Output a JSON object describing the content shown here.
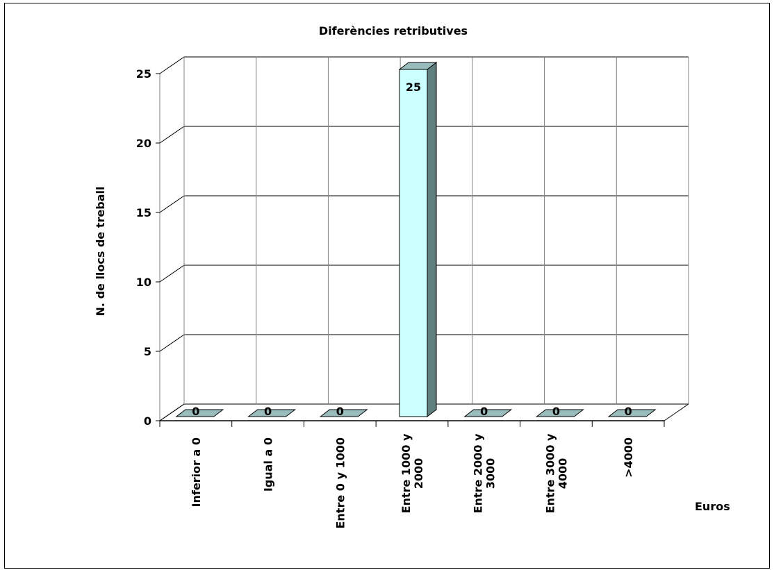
{
  "chart_data": {
    "type": "bar",
    "title": "Diferències retributives",
    "xlabel": "Euros",
    "ylabel": "N. de llocs de treball",
    "ylim": [
      0,
      25
    ],
    "yticks": [
      "0",
      "5",
      "10",
      "15",
      "20",
      "25"
    ],
    "grid": true,
    "legend": "none",
    "categories": [
      [
        "Inferior a 0"
      ],
      [
        "Igual a 0"
      ],
      [
        "Entre 0 y 1000"
      ],
      [
        "Entre 1000 y",
        "2000"
      ],
      [
        "Entre 2000 y",
        "3000"
      ],
      [
        "Entre 3000 y",
        "4000"
      ],
      [
        ">4000"
      ]
    ],
    "values": [
      0,
      0,
      0,
      25,
      0,
      0,
      0
    ],
    "data_labels": [
      "0",
      "0",
      "0",
      "25",
      "0",
      "0",
      "0"
    ],
    "colors": {
      "bar_front": "#CCFFFF",
      "bar_top": "#99BBBB",
      "bar_side": "#5F7F7F",
      "grid": "#000000"
    }
  }
}
